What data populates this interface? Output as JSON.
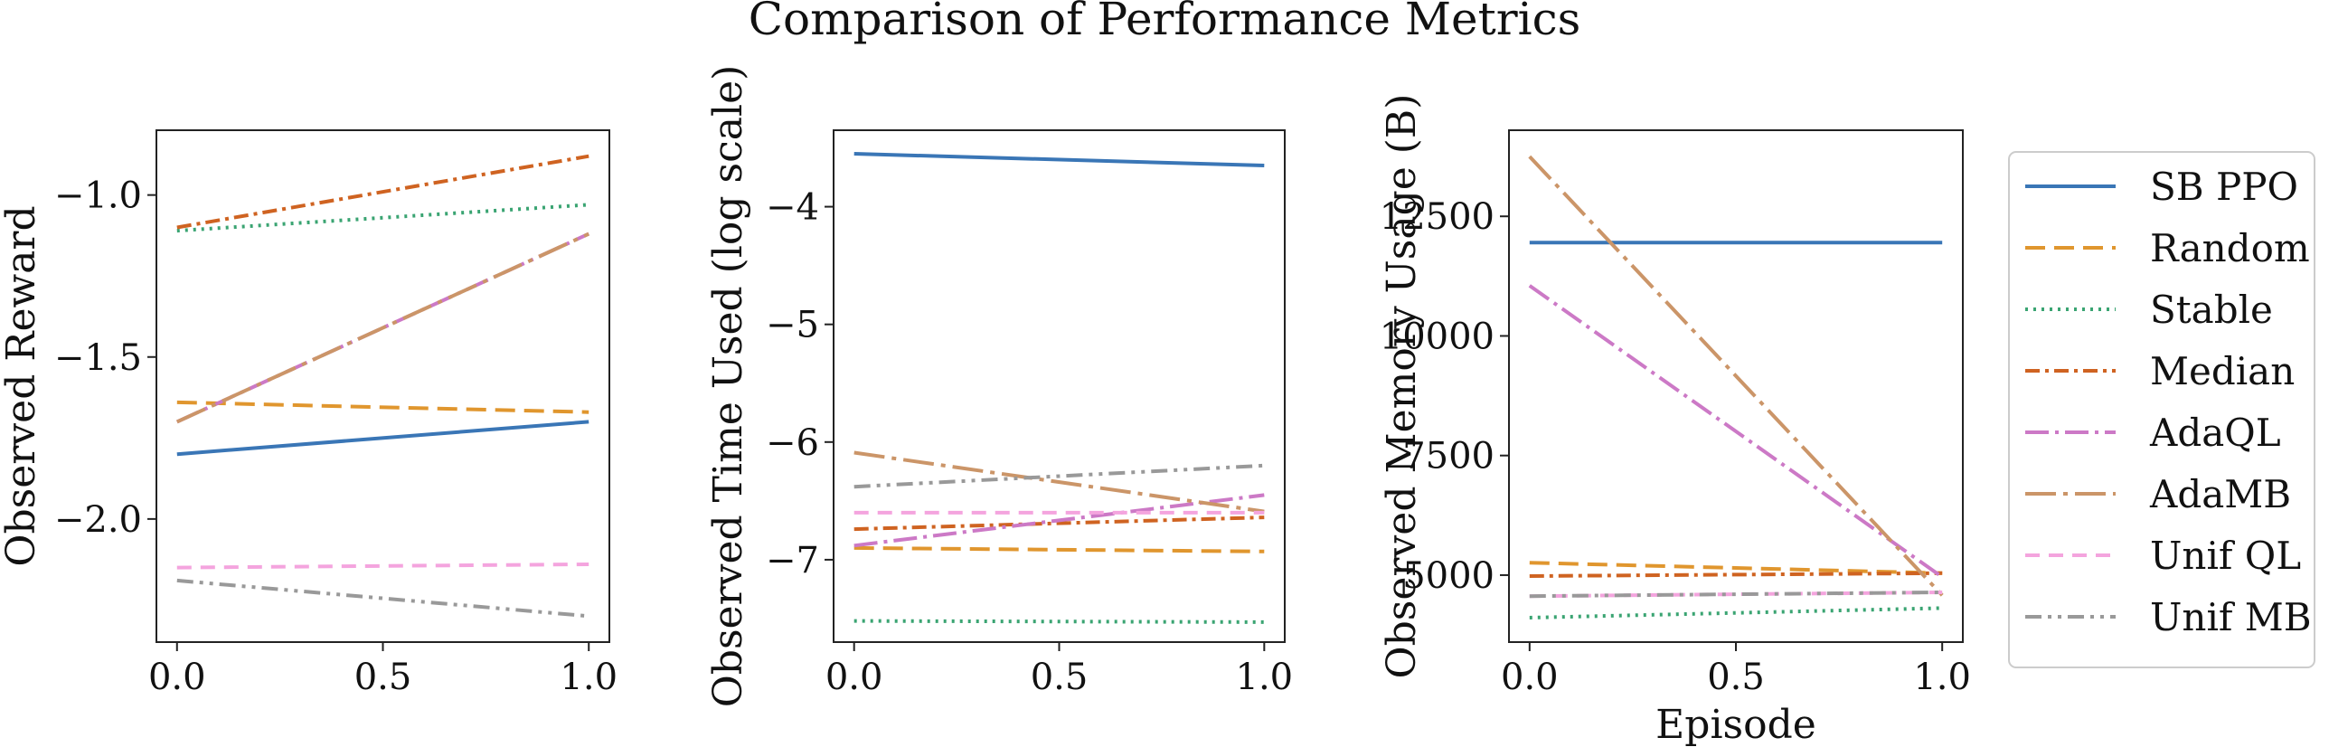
{
  "figure": {
    "title": "Comparison of Performance Metrics"
  },
  "legend": {
    "placement": "right",
    "entries": [
      {
        "name": "SB PPO",
        "color": "#3a76b6",
        "dash": "solid"
      },
      {
        "name": "Random",
        "color": "#e0962e",
        "dash": "dashed"
      },
      {
        "name": "Stable",
        "color": "#3aa472",
        "dash": "dotted"
      },
      {
        "name": "Median",
        "color": "#cf6321",
        "dash": "dashdot"
      },
      {
        "name": "AdaQL",
        "color": "#cc79c6",
        "dash": "dashdot-long"
      },
      {
        "name": "AdaMB",
        "color": "#cb9568",
        "dash": "longdashdot"
      },
      {
        "name": "Unif QL",
        "color": "#f4a4de",
        "dash": "dashed-light"
      },
      {
        "name": "Unif MB",
        "color": "#999999",
        "dash": "dashdotdot"
      }
    ]
  },
  "chart_data": [
    {
      "type": "line",
      "title": "",
      "xlabel": "",
      "ylabel": "Observed Reward",
      "x": [
        0.0,
        1.0
      ],
      "xlim": [
        -0.05,
        1.05
      ],
      "ylim": [
        -2.38,
        -0.8
      ],
      "xticks": [
        0.0,
        0.5,
        1.0
      ],
      "xtick_labels": [
        "0.0",
        "0.5",
        "1.0"
      ],
      "yticks": [
        -1.0,
        -1.5,
        -2.0
      ],
      "ytick_labels": [
        "−1.0",
        "−1.5",
        "−2.0"
      ],
      "grid": false,
      "series": [
        {
          "name": "SB PPO",
          "values": [
            -1.8,
            -1.7
          ]
        },
        {
          "name": "Random",
          "values": [
            -1.64,
            -1.67
          ]
        },
        {
          "name": "Stable",
          "values": [
            -1.11,
            -1.03
          ]
        },
        {
          "name": "Median",
          "values": [
            -1.1,
            -0.88
          ]
        },
        {
          "name": "AdaQL",
          "values": [
            -1.7,
            -1.12
          ]
        },
        {
          "name": "AdaMB",
          "values": [
            -1.7,
            -1.12
          ]
        },
        {
          "name": "Unif QL",
          "values": [
            -2.15,
            -2.14
          ]
        },
        {
          "name": "Unif MB",
          "values": [
            -2.19,
            -2.3
          ]
        }
      ]
    },
    {
      "type": "line",
      "title": "",
      "xlabel": "",
      "ylabel": "Observed Time Used (log scale)",
      "x": [
        0.0,
        1.0
      ],
      "xlim": [
        -0.05,
        1.05
      ],
      "ylim": [
        -7.7,
        -3.35
      ],
      "xticks": [
        0.0,
        0.5,
        1.0
      ],
      "xtick_labels": [
        "0.0",
        "0.5",
        "1.0"
      ],
      "yticks": [
        -4,
        -5,
        -6,
        -7
      ],
      "ytick_labels": [
        "−4",
        "−5",
        "−6",
        "−7"
      ],
      "grid": false,
      "series": [
        {
          "name": "SB PPO",
          "values": [
            -3.55,
            -3.65
          ]
        },
        {
          "name": "Random",
          "values": [
            -6.9,
            -6.93
          ]
        },
        {
          "name": "Stable",
          "values": [
            -7.52,
            -7.53
          ]
        },
        {
          "name": "Median",
          "values": [
            -6.74,
            -6.64
          ]
        },
        {
          "name": "AdaQL",
          "values": [
            -6.88,
            -6.45
          ]
        },
        {
          "name": "AdaMB",
          "values": [
            -6.09,
            -6.59
          ]
        },
        {
          "name": "Unif QL",
          "values": [
            -6.6,
            -6.6
          ]
        },
        {
          "name": "Unif MB",
          "values": [
            -6.38,
            -6.2
          ]
        }
      ]
    },
    {
      "type": "line",
      "title": "",
      "xlabel": "Episode",
      "ylabel": "Observed Memory Usage (B)",
      "x": [
        0.0,
        1.0
      ],
      "xlim": [
        -0.05,
        1.05
      ],
      "ylim": [
        3600,
        14300
      ],
      "xticks": [
        0.0,
        0.5,
        1.0
      ],
      "xtick_labels": [
        "0.0",
        "0.5",
        "1.0"
      ],
      "yticks": [
        5000,
        7500,
        10000,
        12500
      ],
      "ytick_labels": [
        "5000",
        "7500",
        "10000",
        "12500"
      ],
      "grid": false,
      "series": [
        {
          "name": "SB PPO",
          "values": [
            11950,
            11950
          ]
        },
        {
          "name": "Random",
          "values": [
            5260,
            5040
          ]
        },
        {
          "name": "Stable",
          "values": [
            4110,
            4310
          ]
        },
        {
          "name": "Median",
          "values": [
            4980,
            5040
          ]
        },
        {
          "name": "AdaQL",
          "values": [
            11050,
            4960
          ]
        },
        {
          "name": "AdaMB",
          "values": [
            13750,
            4580
          ]
        },
        {
          "name": "Unif QL",
          "values": [
            4560,
            4640
          ]
        },
        {
          "name": "Unif MB",
          "values": [
            4560,
            4640
          ]
        }
      ]
    }
  ]
}
